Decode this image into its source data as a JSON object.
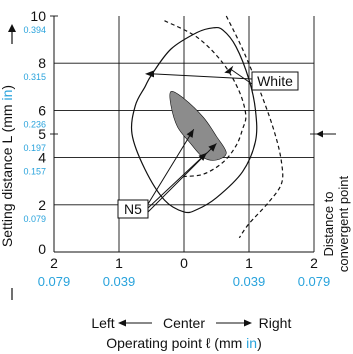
{
  "chart_data": {
    "type": "area",
    "x_axis": {
      "title_prefix": "Operating point ℓ (mm ",
      "title_unit": "in",
      "title_suffix": ")",
      "ticks_mm": [
        "2",
        "1",
        "0",
        "1",
        "2"
      ],
      "ticks_in": [
        "0.079",
        "0.039",
        "",
        "0.039",
        "0.079"
      ],
      "tick_values": [
        -2,
        -1,
        0,
        1,
        2
      ],
      "range": [
        -2,
        2
      ],
      "left_label": "Left",
      "center_label": "Center",
      "right_label": "Right"
    },
    "y_axis": {
      "title_prefix": "Setting distance L (mm ",
      "title_unit": "in",
      "title_suffix": ")",
      "range": [
        0,
        10
      ],
      "ticks_mm": [
        {
          "v": 0,
          "label": "0"
        },
        {
          "v": 2,
          "label": "2"
        },
        {
          "v": 4,
          "label": "4"
        },
        {
          "v": 5,
          "label": "5"
        },
        {
          "v": 6,
          "label": "6"
        },
        {
          "v": 8,
          "label": "8"
        },
        {
          "v": 10,
          "label": "10"
        }
      ],
      "ticks_in": [
        {
          "v": 2,
          "label": "0.079"
        },
        {
          "v": 4,
          "label": "0.157"
        },
        {
          "v": 5,
          "label": "0.197"
        },
        {
          "v": 6,
          "label": "0.236"
        },
        {
          "v": 8,
          "label": "0.315"
        },
        {
          "v": 10,
          "label": "0.394"
        }
      ]
    },
    "right_label_line1": "Distance to",
    "right_label_line2": "convergent point",
    "convergent_point_mm": 5,
    "series": [
      {
        "name": "White",
        "style": "solid",
        "points": [
          [
            -0.5,
            7.5
          ],
          [
            -0.2,
            8.6
          ],
          [
            0.2,
            9.3
          ],
          [
            0.45,
            9.5
          ],
          [
            0.6,
            9.4
          ],
          [
            0.8,
            8.7
          ],
          [
            1.0,
            7.3
          ],
          [
            1.1,
            6.0
          ],
          [
            1.1,
            4.7
          ],
          [
            0.9,
            3.4
          ],
          [
            0.5,
            2.3
          ],
          [
            0.2,
            1.8
          ],
          [
            0.0,
            1.7
          ],
          [
            -0.3,
            2.2
          ],
          [
            -0.6,
            3.5
          ],
          [
            -0.8,
            5.0
          ],
          [
            -0.75,
            6.2
          ],
          [
            -0.6,
            7.0
          ],
          [
            -0.5,
            7.5
          ]
        ]
      },
      {
        "name": "White",
        "style": "dashed",
        "points": [
          [
            -0.3,
            9.8
          ],
          [
            0.2,
            9.1
          ],
          [
            0.6,
            8.0
          ],
          [
            0.85,
            6.8
          ],
          [
            0.95,
            5.8
          ],
          [
            0.9,
            5.2
          ],
          [
            0.8,
            4.5
          ],
          [
            0.6,
            3.8
          ],
          [
            0.3,
            3.3
          ],
          [
            0.0,
            3.2
          ]
        ]
      },
      {
        "name": "White",
        "style": "dashed",
        "points": [
          [
            0.65,
            10.0
          ],
          [
            0.9,
            8.6
          ],
          [
            1.2,
            6.6
          ],
          [
            1.4,
            5.0
          ],
          [
            1.5,
            3.8
          ],
          [
            1.5,
            2.9
          ],
          [
            1.3,
            2.1
          ],
          [
            1.0,
            1.2
          ],
          [
            0.85,
            0.6
          ]
        ]
      },
      {
        "name": "N5",
        "style": "filled",
        "points": [
          [
            -0.2,
            6.8
          ],
          [
            0.0,
            6.5
          ],
          [
            0.3,
            5.7
          ],
          [
            0.5,
            4.9
          ],
          [
            0.65,
            4.2
          ],
          [
            0.5,
            3.9
          ],
          [
            0.3,
            4.0
          ],
          [
            0.1,
            4.6
          ],
          [
            -0.1,
            5.3
          ],
          [
            -0.2,
            6.2
          ],
          [
            -0.2,
            6.8
          ]
        ]
      }
    ],
    "annotations": [
      {
        "text": "White"
      },
      {
        "text": "N5"
      }
    ],
    "grid": true
  }
}
